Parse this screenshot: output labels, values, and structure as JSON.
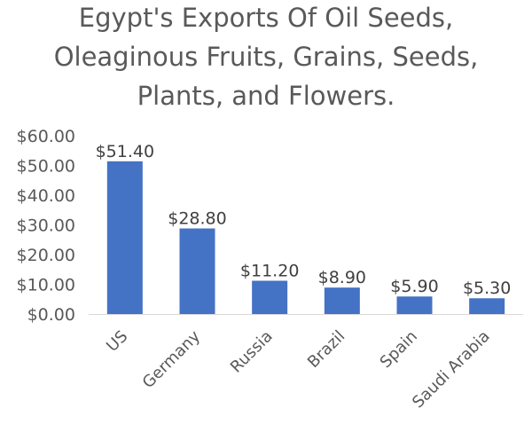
{
  "chart_data": {
    "type": "bar",
    "title_lines": [
      "Egypt's Exports Of Oil Seeds,",
      "Oleaginous Fruits, Grains, Seeds,",
      "Plants, and Flowers."
    ],
    "categories": [
      "US",
      "Germany",
      "Russia",
      "Brazil",
      "Spain",
      "Saudi Arabia"
    ],
    "values": [
      51.4,
      28.8,
      11.2,
      8.9,
      5.9,
      5.3
    ],
    "data_labels": [
      "$51.40",
      "$28.80",
      "$11.20",
      "$8.90",
      "$5.90",
      "$5.30"
    ],
    "y_ticks": [
      "$0.00",
      "$10.00",
      "$20.00",
      "$30.00",
      "$40.00",
      "$50.00",
      "$60.00"
    ],
    "ylim": [
      0,
      60
    ],
    "bar_color": "#4472C4",
    "grid": false,
    "legend": "none"
  }
}
